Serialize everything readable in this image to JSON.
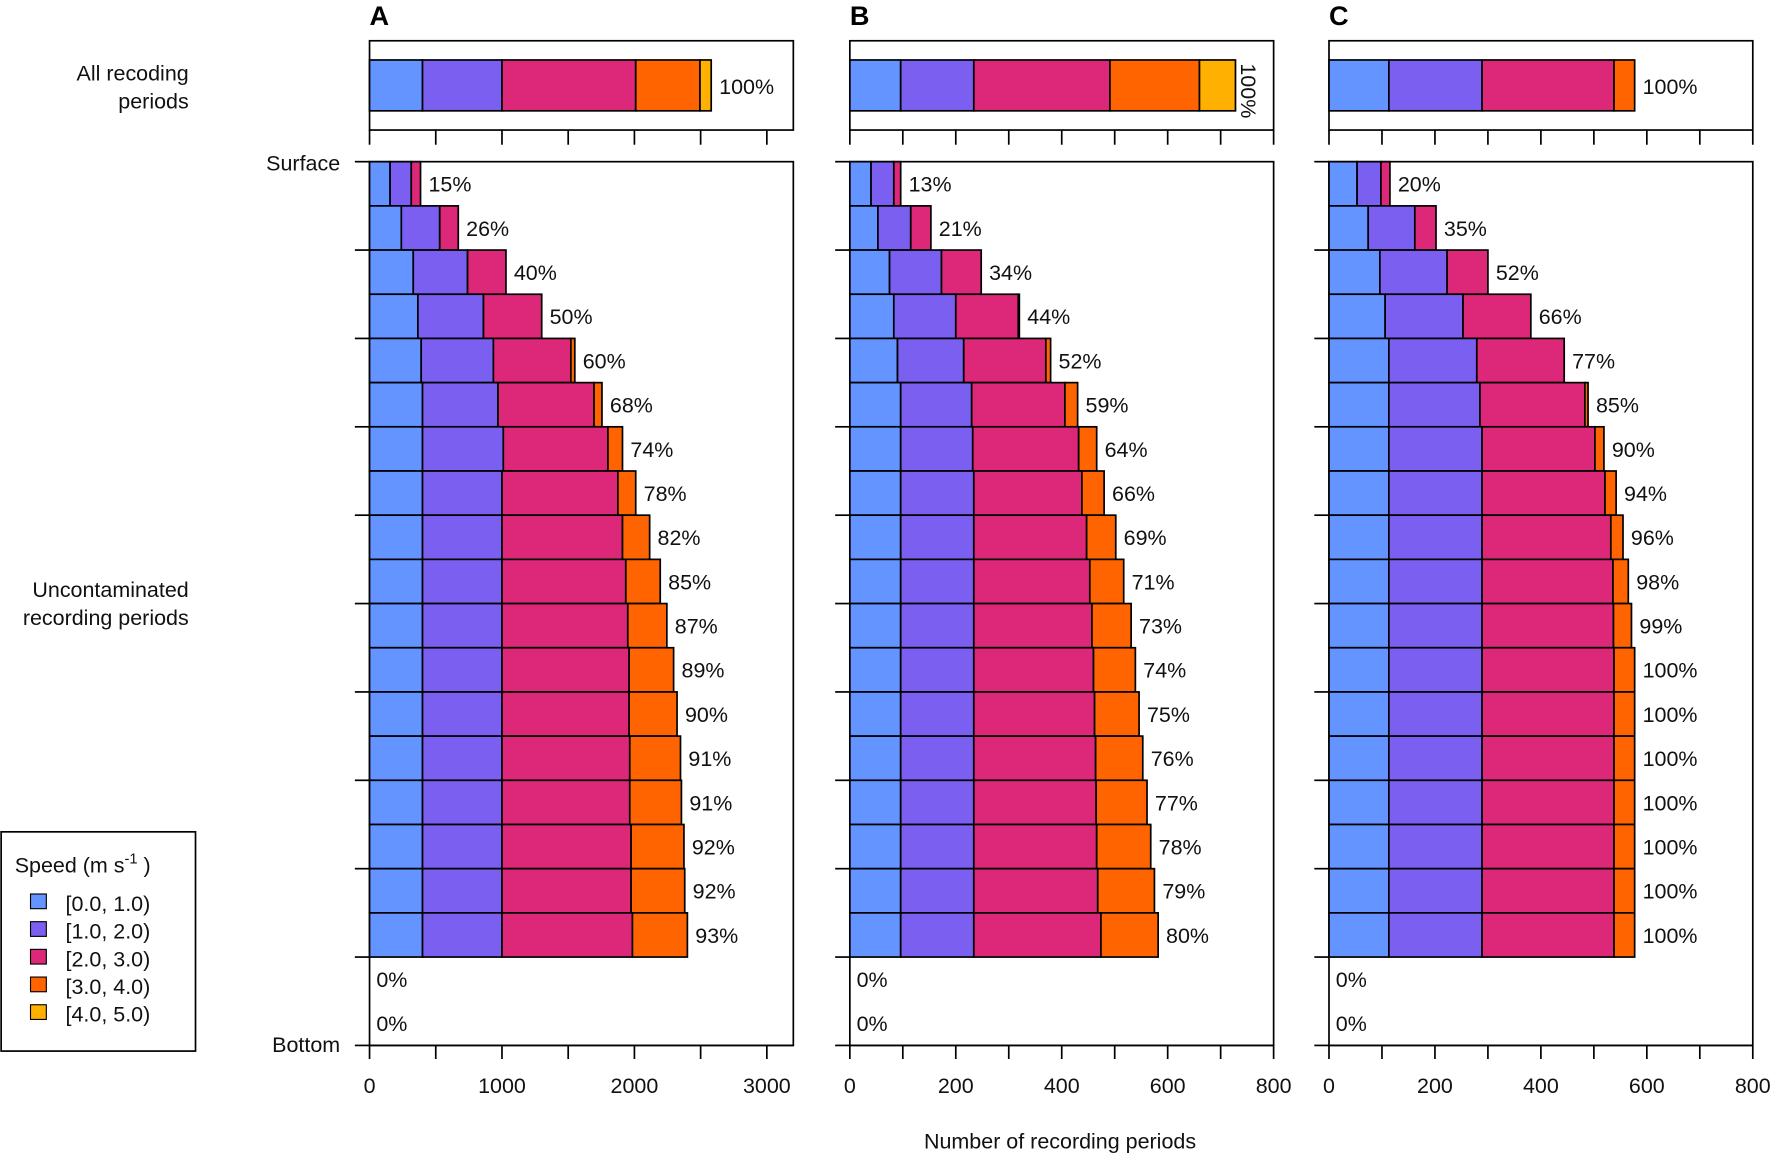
{
  "chart_data": {
    "type": "bar",
    "orientation": "horizontal-stacked",
    "xlabel": "Number of recording periods",
    "row_group_labels": {
      "all": "All recoding periods",
      "unc": "Uncontaminated recording periods"
    },
    "depth_labels": {
      "top": "Surface",
      "bottom": "Bottom"
    },
    "legend": {
      "title": "Speed (m s",
      "title_sup": "-1",
      "title_end": " )",
      "placement": "bottom-left",
      "entries": [
        "[0.0, 1.0)",
        "[1.0, 2.0)",
        "[2.0, 3.0)",
        "[3.0, 4.0)",
        "[4.0, 5.0)"
      ],
      "colors": [
        "#6394ff",
        "#7a5ff0",
        "#dd2779",
        "#ff6400",
        "#ffb000"
      ]
    },
    "panels": [
      {
        "title": "A",
        "xlim": [
          0,
          3200
        ],
        "tick_labels": [
          "0",
          "1000",
          "2000",
          "3000"
        ],
        "tick_values": [
          0,
          1000,
          2000,
          3000
        ],
        "minor_tick_step": 500,
        "all_periods": {
          "values": [
            400,
            600,
            1010,
            485,
            85
          ],
          "label": "100%"
        },
        "rows": [
          {
            "values": [
              155,
              160,
              70,
              0,
              0
            ],
            "label": "15%"
          },
          {
            "values": [
              240,
              290,
              140,
              0,
              0
            ],
            "label": "26%"
          },
          {
            "values": [
              330,
              410,
              290,
              0,
              0
            ],
            "label": "40%"
          },
          {
            "values": [
              365,
              495,
              440,
              0,
              0
            ],
            "label": "50%"
          },
          {
            "values": [
              390,
              545,
              585,
              30,
              0
            ],
            "label": "60%"
          },
          {
            "values": [
              400,
              570,
              725,
              60,
              0
            ],
            "label": "68%"
          },
          {
            "values": [
              400,
              610,
              790,
              110,
              0
            ],
            "label": "74%"
          },
          {
            "values": [
              400,
              600,
              875,
              135,
              0
            ],
            "label": "78%"
          },
          {
            "values": [
              400,
              600,
              910,
              205,
              0
            ],
            "label": "82%"
          },
          {
            "values": [
              400,
              600,
              935,
              260,
              0
            ],
            "label": "85%"
          },
          {
            "values": [
              400,
              600,
              950,
              295,
              0
            ],
            "label": "87%"
          },
          {
            "values": [
              400,
              600,
              960,
              336,
              0
            ],
            "label": "89%"
          },
          {
            "values": [
              400,
              600,
              960,
              362,
              0
            ],
            "label": "90%"
          },
          {
            "values": [
              400,
              600,
              965,
              383,
              0
            ],
            "label": "91%"
          },
          {
            "values": [
              400,
              600,
              965,
              390,
              0
            ],
            "label": "91%"
          },
          {
            "values": [
              400,
              600,
              975,
              399,
              0
            ],
            "label": "92%"
          },
          {
            "values": [
              400,
              600,
              975,
              405,
              0
            ],
            "label": "92%"
          },
          {
            "values": [
              400,
              600,
              985,
              415,
              0
            ],
            "label": "93%"
          },
          {
            "values": [
              0,
              0,
              0,
              0,
              0
            ],
            "label": "0%"
          },
          {
            "values": [
              0,
              0,
              0,
              0,
              0
            ],
            "label": "0%"
          }
        ]
      },
      {
        "title": "B",
        "xlim": [
          0,
          800
        ],
        "tick_labels": [
          "0",
          "200",
          "400",
          "600",
          "800"
        ],
        "tick_values": [
          0,
          200,
          400,
          600,
          800
        ],
        "minor_tick_step": 100,
        "all_periods": {
          "values": [
            96,
            138,
            257,
            169,
            68
          ],
          "label": "100%",
          "label_rotated": true
        },
        "rows": [
          {
            "values": [
              40,
              43,
              13,
              0,
              0
            ],
            "label": "13%"
          },
          {
            "values": [
              53,
              62,
              38,
              0,
              0
            ],
            "label": "21%"
          },
          {
            "values": [
              75,
              98,
              75,
              0,
              0
            ],
            "label": "34%"
          },
          {
            "values": [
              83,
              117,
              118,
              2,
              0
            ],
            "label": "44%"
          },
          {
            "values": [
              90,
              125,
              155,
              9,
              0
            ],
            "label": "52%"
          },
          {
            "values": [
              96,
              134,
              176,
              24,
              0
            ],
            "label": "59%"
          },
          {
            "values": [
              96,
              136,
              200,
              34,
              0
            ],
            "label": "64%"
          },
          {
            "values": [
              96,
              138,
              204,
              42,
              0
            ],
            "label": "66%"
          },
          {
            "values": [
              96,
              138,
              213,
              55,
              0
            ],
            "label": "69%"
          },
          {
            "values": [
              96,
              138,
              219,
              64,
              0
            ],
            "label": "71%"
          },
          {
            "values": [
              96,
              138,
              223,
              74,
              0
            ],
            "label": "73%"
          },
          {
            "values": [
              96,
              138,
              226,
              79,
              0
            ],
            "label": "74%"
          },
          {
            "values": [
              96,
              138,
              228,
              84,
              0
            ],
            "label": "75%"
          },
          {
            "values": [
              96,
              138,
              230,
              89,
              0
            ],
            "label": "76%"
          },
          {
            "values": [
              96,
              138,
              231,
              96,
              0
            ],
            "label": "77%"
          },
          {
            "values": [
              96,
              138,
              232,
              102,
              0
            ],
            "label": "78%"
          },
          {
            "values": [
              96,
              138,
              234,
              107,
              0
            ],
            "label": "79%"
          },
          {
            "values": [
              96,
              138,
              240,
              108,
              0
            ],
            "label": "80%"
          },
          {
            "values": [
              0,
              0,
              0,
              0,
              0
            ],
            "label": "0%"
          },
          {
            "values": [
              0,
              0,
              0,
              0,
              0
            ],
            "label": "0%"
          }
        ]
      },
      {
        "title": "C",
        "xlim": [
          0,
          800
        ],
        "tick_labels": [
          "0",
          "200",
          "400",
          "600",
          "800"
        ],
        "tick_values": [
          0,
          200,
          400,
          600,
          800
        ],
        "minor_tick_step": 100,
        "all_periods": {
          "values": [
            113,
            176,
            249,
            39,
            0
          ],
          "label": "100%"
        },
        "rows": [
          {
            "values": [
              53,
              45,
              17,
              0,
              0
            ],
            "label": "20%"
          },
          {
            "values": [
              74,
              88,
              40,
              0,
              0
            ],
            "label": "35%"
          },
          {
            "values": [
              96,
              127,
              77,
              0,
              0
            ],
            "label": "52%"
          },
          {
            "values": [
              106,
              147,
              128,
              0,
              0
            ],
            "label": "66%"
          },
          {
            "values": [
              113,
              166,
              165,
              0,
              0
            ],
            "label": "77%"
          },
          {
            "values": [
              113,
              172,
              198,
              6,
              0
            ],
            "label": "85%"
          },
          {
            "values": [
              113,
              176,
              213,
              17,
              0
            ],
            "label": "90%"
          },
          {
            "values": [
              113,
              176,
              232,
              21,
              0
            ],
            "label": "94%"
          },
          {
            "values": [
              113,
              176,
              243,
              23,
              0
            ],
            "label": "96%"
          },
          {
            "values": [
              113,
              176,
              247,
              29,
              0
            ],
            "label": "98%"
          },
          {
            "values": [
              113,
              176,
              248,
              34,
              0
            ],
            "label": "99%"
          },
          {
            "values": [
              113,
              176,
              249,
              39,
              0
            ],
            "label": "100%"
          },
          {
            "values": [
              113,
              176,
              249,
              39,
              0
            ],
            "label": "100%"
          },
          {
            "values": [
              113,
              176,
              249,
              39,
              0
            ],
            "label": "100%"
          },
          {
            "values": [
              113,
              176,
              249,
              39,
              0
            ],
            "label": "100%"
          },
          {
            "values": [
              113,
              176,
              249,
              39,
              0
            ],
            "label": "100%"
          },
          {
            "values": [
              113,
              176,
              249,
              39,
              0
            ],
            "label": "100%"
          },
          {
            "values": [
              113,
              176,
              249,
              39,
              0
            ],
            "label": "100%"
          },
          {
            "values": [
              0,
              0,
              0,
              0,
              0
            ],
            "label": "0%"
          },
          {
            "values": [
              0,
              0,
              0,
              0,
              0
            ],
            "label": "0%"
          }
        ]
      }
    ]
  }
}
